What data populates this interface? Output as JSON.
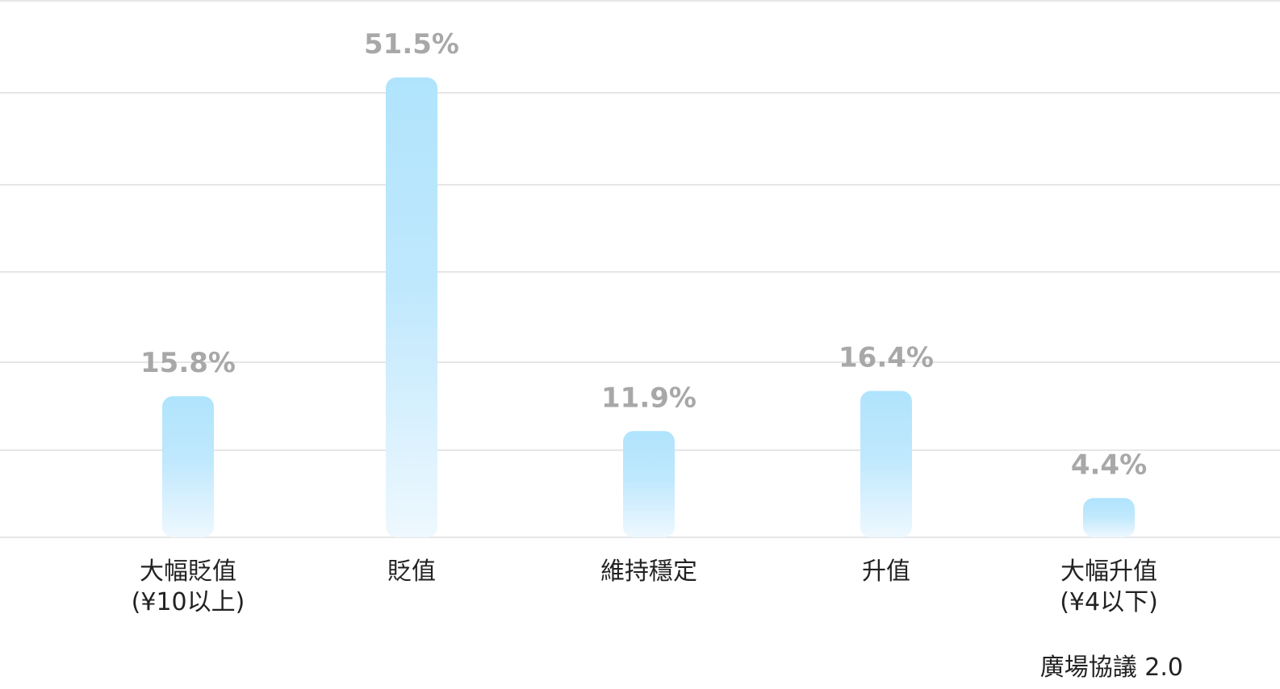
{
  "chart_data": {
    "type": "bar",
    "categories": [
      [
        "大幅貶值",
        "(¥10以上)"
      ],
      [
        "貶值"
      ],
      [
        "維持穩定"
      ],
      [
        "升值"
      ],
      [
        "大幅升值",
        "(¥4以下)"
      ]
    ],
    "values": [
      15.8,
      51.5,
      11.9,
      16.4,
      4.4
    ],
    "value_labels": [
      "15.8%",
      "51.5%",
      "11.9%",
      "16.4%",
      "4.4%"
    ],
    "unit": "%",
    "ylim": [
      0,
      51.5
    ],
    "grid": true,
    "colors": {
      "bar_top": "#b0e4fd",
      "bar_bottom": "#eef8fe",
      "grid": "#e6e6e6",
      "value_label": "#a8a8a8",
      "category_label": "#222222"
    }
  },
  "footer": {
    "source": "廣場協議 2.0"
  }
}
